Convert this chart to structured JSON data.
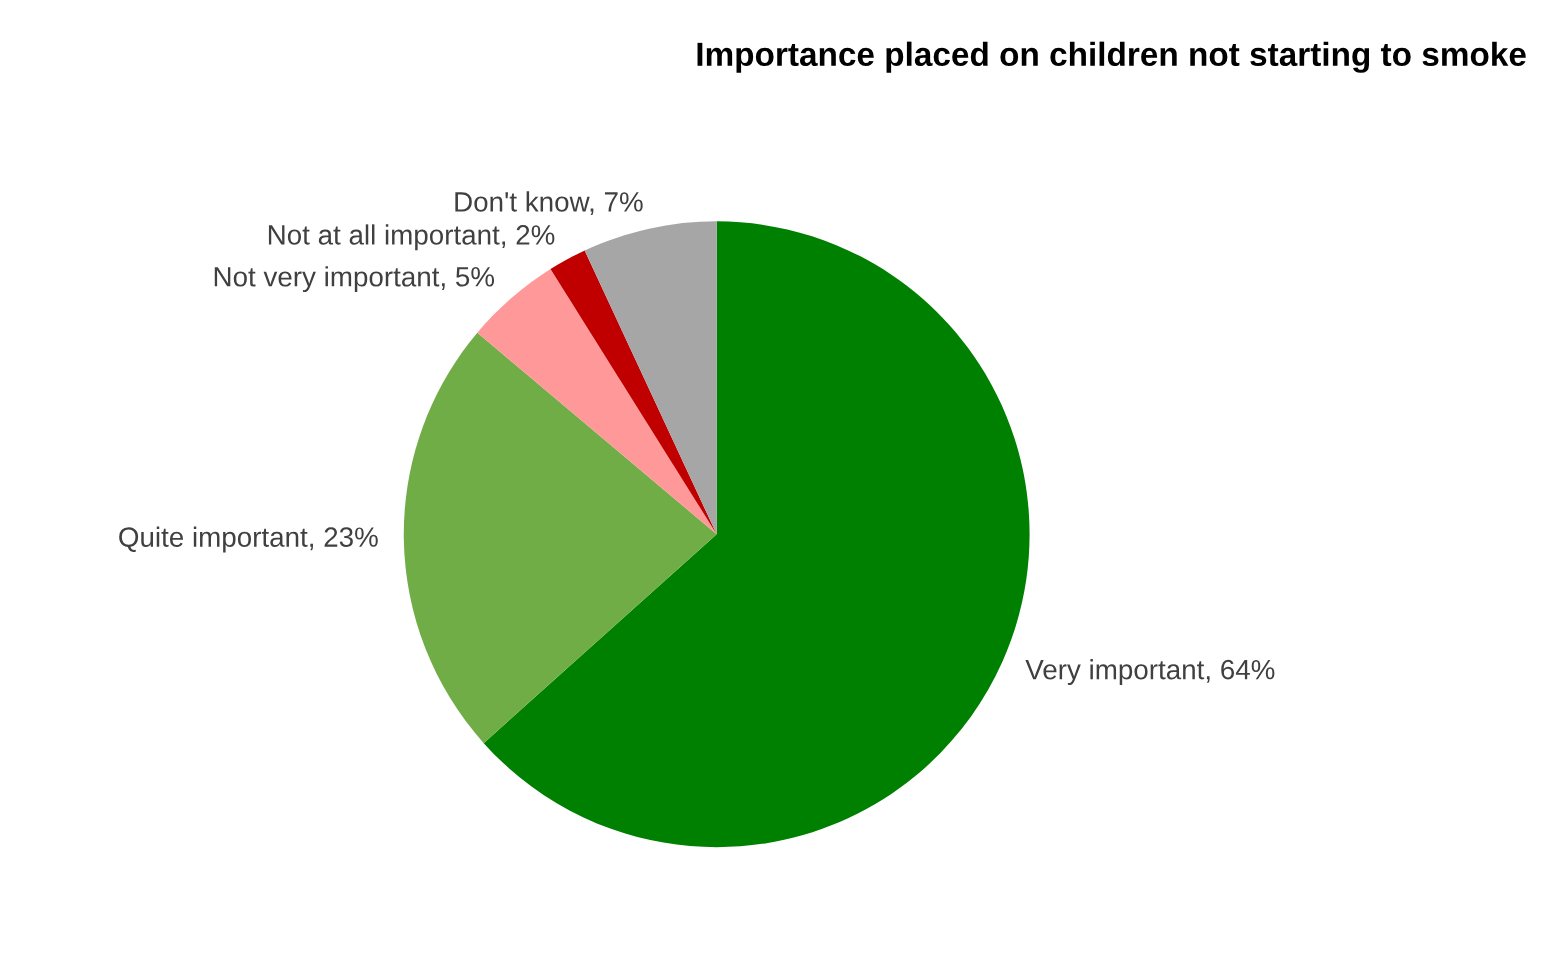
{
  "chart_data": {
    "type": "pie",
    "title": "Importance placed on children not starting to smoke",
    "categories": [
      "Very important",
      "Quite important",
      "Not very important",
      "Not at all important",
      "Don't know"
    ],
    "values": [
      64,
      23,
      5,
      2,
      7
    ],
    "value_labels": [
      "64%",
      "23%",
      "5%",
      "2%",
      "7%"
    ],
    "colors": [
      "#008000",
      "#70ad47",
      "#ff9999",
      "#c00000",
      "#a6a6a6"
    ]
  }
}
